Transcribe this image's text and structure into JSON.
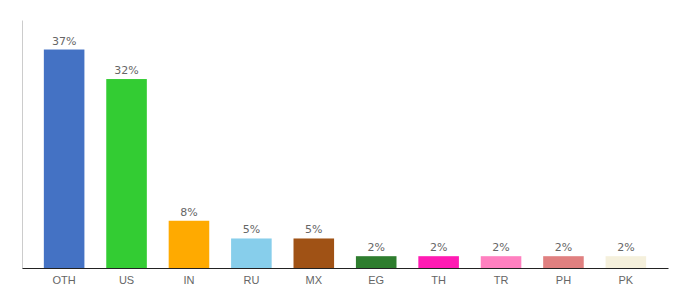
{
  "chart_data": {
    "type": "bar",
    "categories": [
      "OTH",
      "US",
      "IN",
      "RU",
      "MX",
      "EG",
      "TH",
      "TR",
      "PH",
      "PK"
    ],
    "values": [
      37,
      32,
      8,
      5,
      5,
      2,
      2,
      2,
      2,
      2
    ],
    "value_labels": [
      "37%",
      "32%",
      "8%",
      "5%",
      "5%",
      "2%",
      "2%",
      "2%",
      "2%",
      "2%"
    ],
    "colors": [
      "#4472c4",
      "#33cc33",
      "#ffaa00",
      "#87ceeb",
      "#a05215",
      "#2e7d2e",
      "#ff1ab3",
      "#ff80c0",
      "#e08080",
      "#f5f0dc"
    ],
    "ylim": [
      0,
      42
    ],
    "grid": false,
    "data_labels": true,
    "tick_labels": "x"
  }
}
